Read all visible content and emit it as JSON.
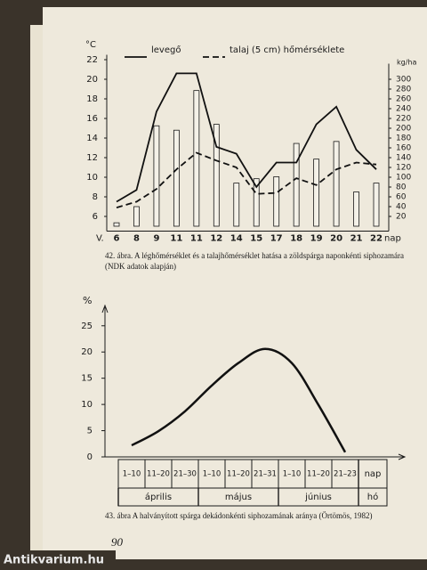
{
  "chart_data": [
    {
      "type": "bar_line",
      "y_label": "°C",
      "y2_label": "kg/ha",
      "x_start_label": "V.",
      "x_unit": "nap",
      "categories": [
        "6",
        "8",
        "9",
        "11",
        "11",
        "12",
        "14",
        "15",
        "17",
        "18",
        "19",
        "20",
        "21",
        "22"
      ],
      "ylim": [
        4.5,
        22.5
      ],
      "yticks": [
        6,
        8,
        10,
        12,
        14,
        16,
        18,
        20,
        22
      ],
      "y2lim": [
        -10,
        350
      ],
      "y2ticks": [
        20,
        40,
        60,
        80,
        100,
        120,
        140,
        160,
        180,
        200,
        220,
        240,
        260,
        280,
        300
      ],
      "series": [
        {
          "name": "levegő",
          "type": "line",
          "color": "#111111",
          "dashed": false,
          "values": [
            7.5,
            8.7,
            16.7,
            20.6,
            20.6,
            13.1,
            12.4,
            9,
            11.5,
            11.5,
            15.4,
            17.2,
            12.8,
            10.8
          ]
        },
        {
          "name": "talaj (5 cm) hőmérséklete",
          "type": "line",
          "color": "#111111",
          "dashed": true,
          "values": [
            6.9,
            7.5,
            8.8,
            10.8,
            12.5,
            11.7,
            11,
            8.3,
            8.4,
            9.9,
            9.2,
            10.8,
            11.5,
            11.3
          ]
        },
        {
          "type": "bar",
          "axis": "y2",
          "color": "#f4f1e8",
          "values": [
            7,
            40,
            205,
            196,
            277,
            208,
            88,
            97,
            101,
            169,
            137,
            173,
            70,
            88
          ]
        }
      ]
    },
    {
      "type": "line",
      "y_label": "%",
      "smooth": true,
      "categories": [
        "1–10",
        "11–20",
        "21–30",
        "1–10",
        "11–20",
        "21–31",
        "1–10",
        "11–20",
        "21–23"
      ],
      "months": [
        "április",
        "május",
        "június"
      ],
      "row_labels": [
        "nap",
        "hó"
      ],
      "ylim": [
        0,
        27
      ],
      "yticks": [
        0,
        5,
        10,
        15,
        20,
        25
      ],
      "color": "#111111",
      "values": [
        2.2,
        4.9,
        8.7,
        13.6,
        17.9,
        20.6,
        17.9,
        9.9,
        0.9
      ]
    }
  ],
  "captions": [
    "42. ábra. A léghőmérséklet és a talajhőmérséklet hatása a zöldspárga naponkénti siphozamára (NDK adatok alapján)",
    "43. ábra A halványított spárga dekádonkénti siphozamának aránya (Örtömös, 1982)"
  ],
  "page_number": "90",
  "watermark": "Antikvarium.hu"
}
